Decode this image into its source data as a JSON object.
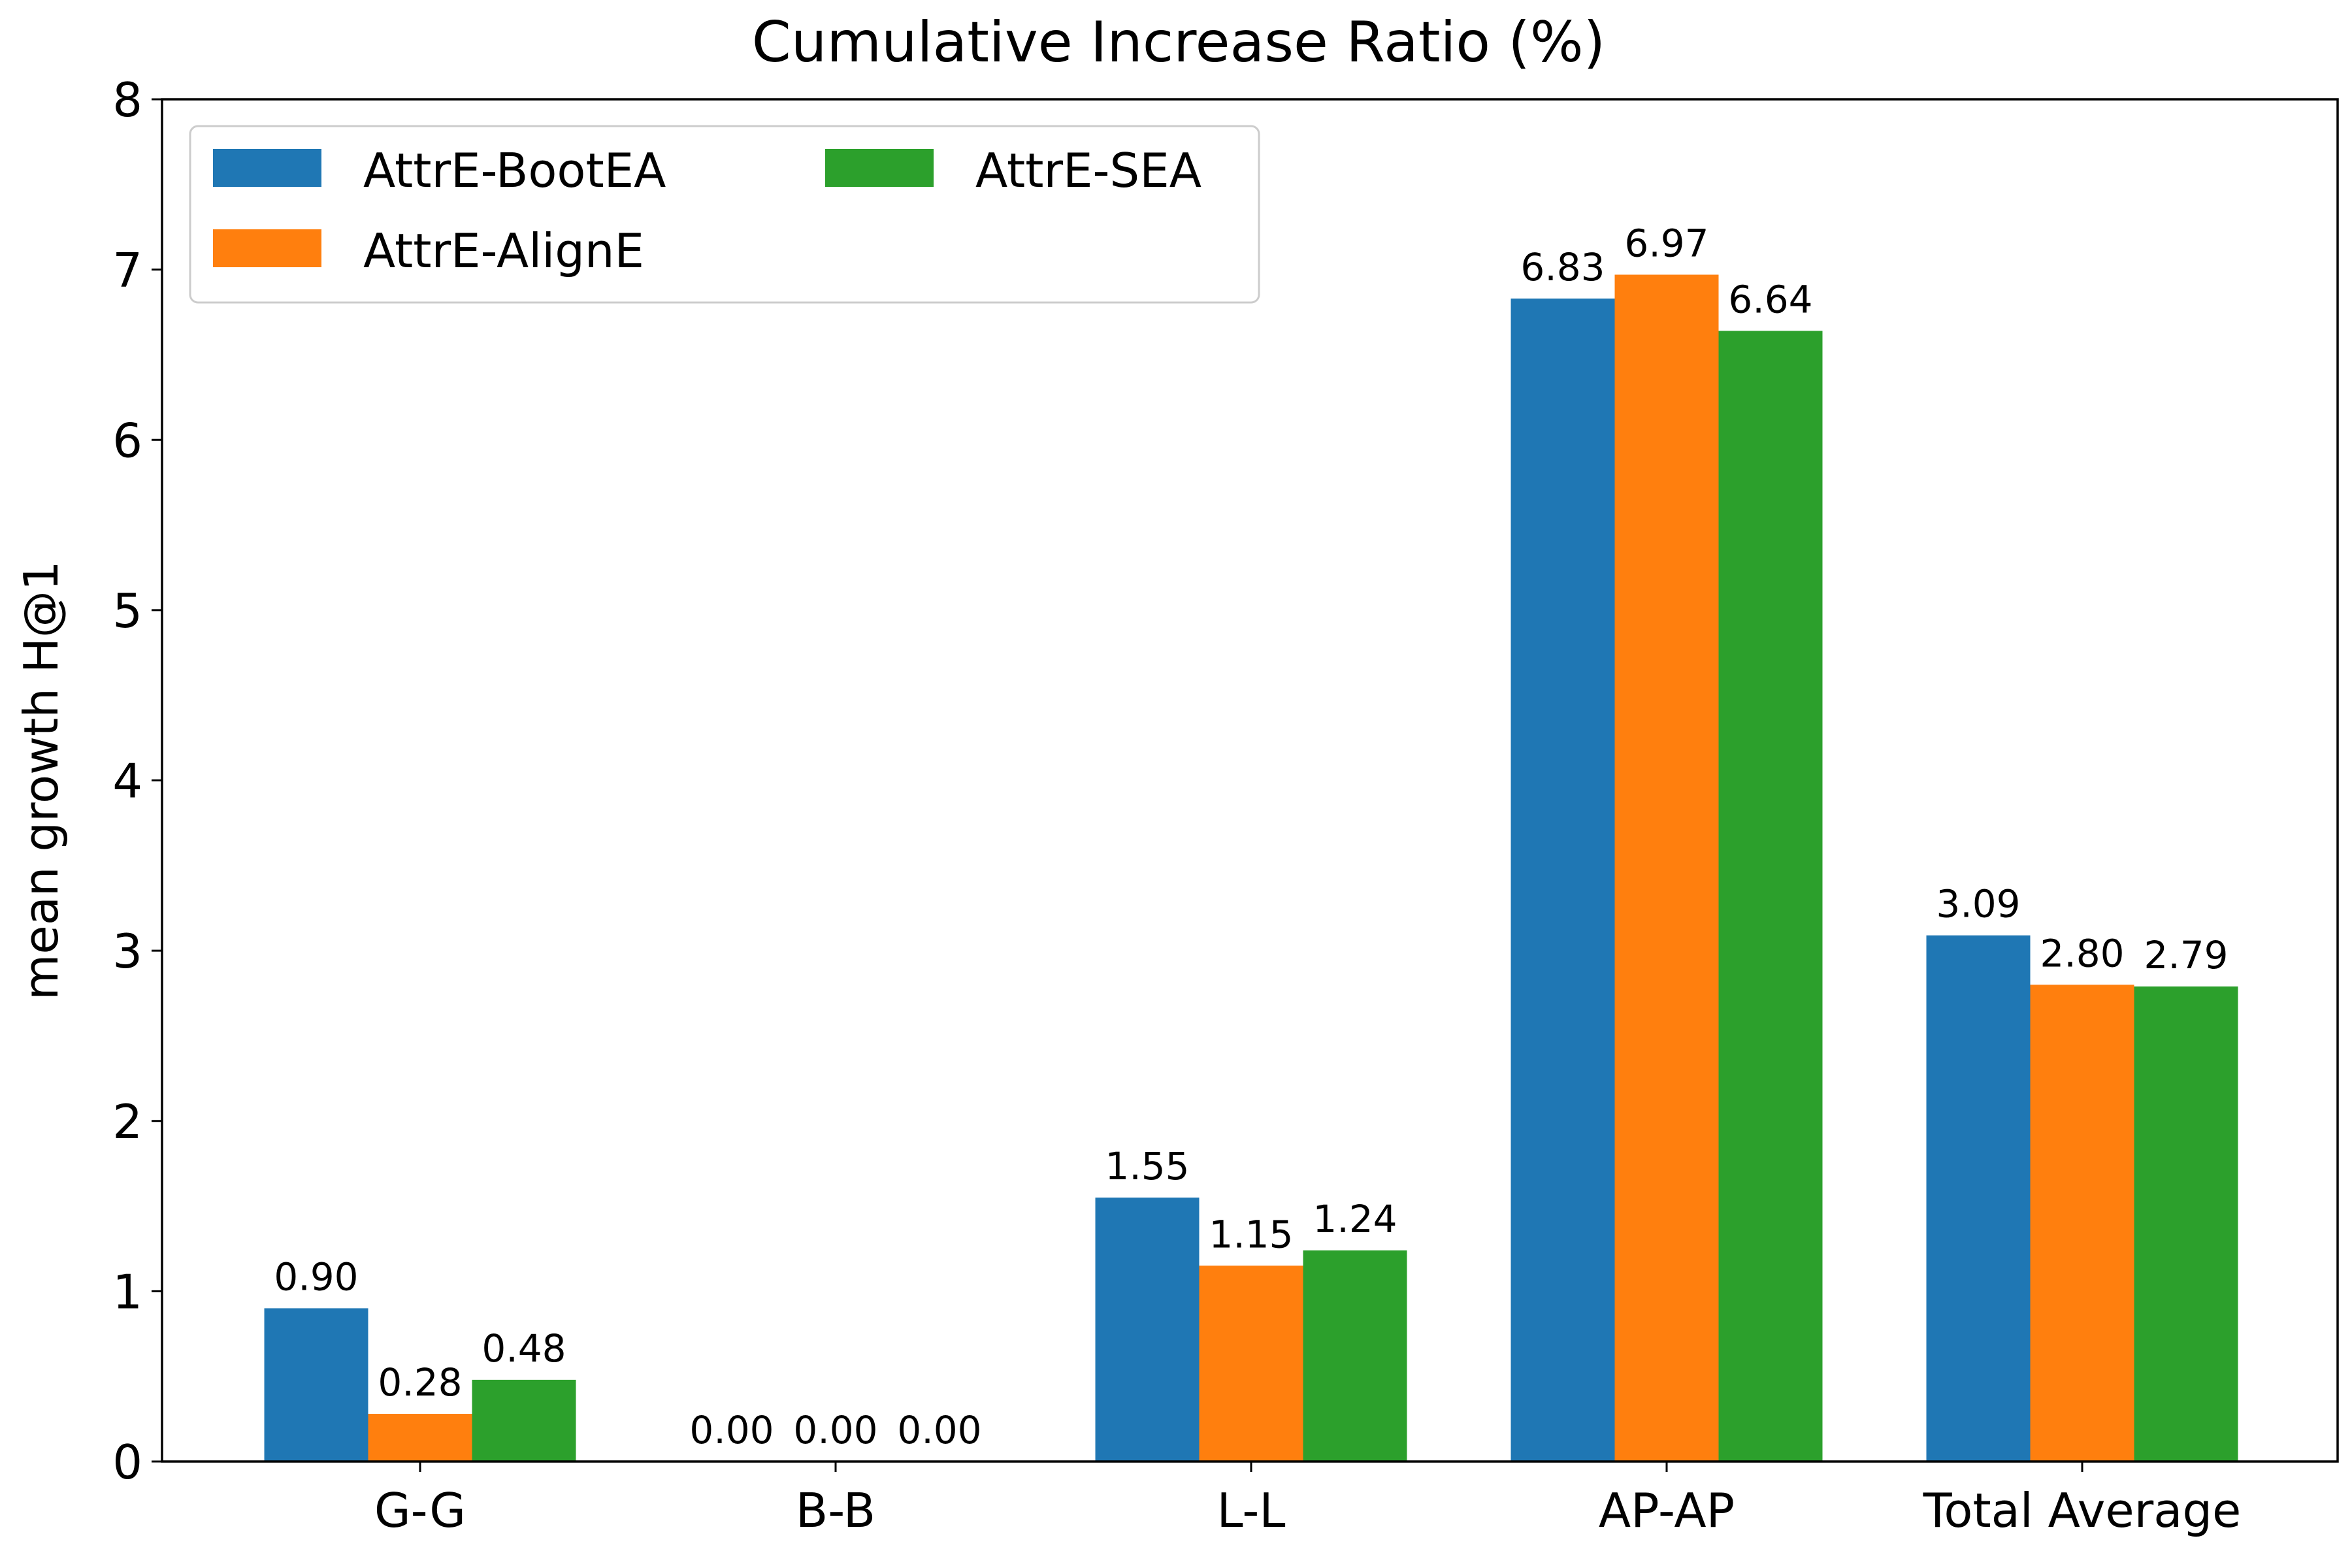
{
  "chart_data": {
    "type": "bar",
    "title": "Cumulative Increase Ratio (%)",
    "xlabel": "",
    "ylabel": "mean growth H@1",
    "categories": [
      "G-G",
      "B-B",
      "L-L",
      "AP-AP",
      "Total Average"
    ],
    "series": [
      {
        "name": "AttrE-BootEA",
        "color": "#1f77b4",
        "values": [
          0.9,
          0.0,
          1.55,
          6.83,
          3.09
        ]
      },
      {
        "name": "AttrE-AlignE",
        "color": "#ff7f0e",
        "values": [
          0.28,
          0.0,
          1.15,
          6.97,
          2.8
        ]
      },
      {
        "name": "AttrE-SEA",
        "color": "#2ca02c",
        "values": [
          0.48,
          0.0,
          1.24,
          6.64,
          2.79
        ]
      }
    ],
    "data_labels": [
      [
        "0.90",
        "0.00",
        "1.55",
        "6.83",
        "3.09"
      ],
      [
        "0.28",
        "0.00",
        "1.15",
        "6.97",
        "2.80"
      ],
      [
        "0.48",
        "0.00",
        "1.24",
        "6.64",
        "2.79"
      ]
    ],
    "ylim": [
      0,
      8
    ],
    "yticks": [
      "0",
      "1",
      "2",
      "3",
      "4",
      "5",
      "6",
      "7",
      "8"
    ],
    "grid": false,
    "legend_position": "upper-left"
  }
}
